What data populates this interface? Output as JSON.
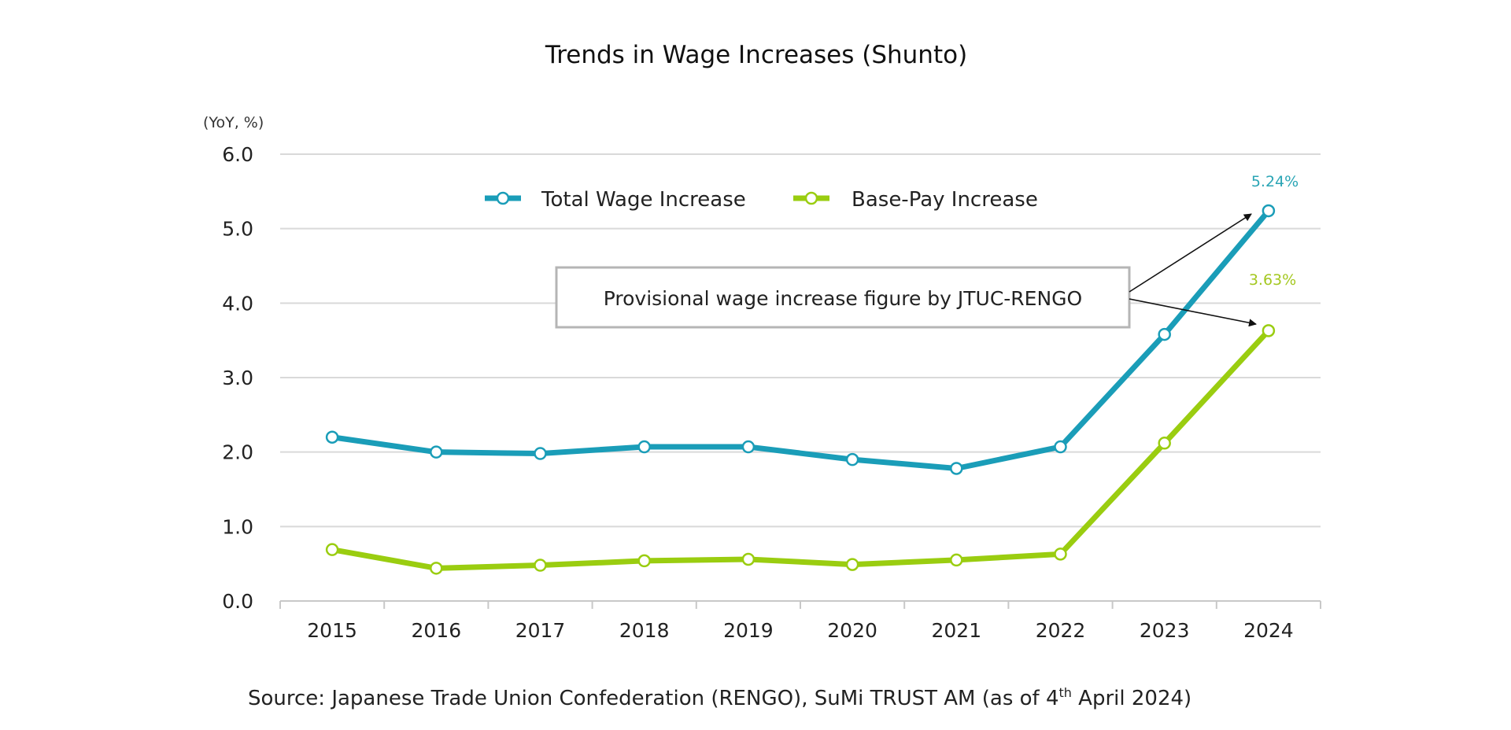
{
  "chart_data": {
    "type": "line",
    "title": "Trends in Wage Increases (Shunto)",
    "ylabel": "(YoY, %)",
    "xlabel": "",
    "categories": [
      "2015",
      "2016",
      "2017",
      "2018",
      "2019",
      "2020",
      "2021",
      "2022",
      "2023",
      "2024"
    ],
    "ylim": [
      0,
      6
    ],
    "yticks": [
      "0.0",
      "1.0",
      "2.0",
      "3.0",
      "4.0",
      "5.0",
      "6.0"
    ],
    "grid": true,
    "legend_position": "top-center",
    "series": [
      {
        "name": "Total Wage Increase",
        "color": "#1a9db8",
        "values": [
          2.2,
          2.0,
          1.98,
          2.07,
          2.07,
          1.9,
          1.78,
          2.07,
          3.58,
          5.24
        ],
        "end_label": "5.24%"
      },
      {
        "name": "Base-Pay Increase",
        "color": "#9acd10",
        "values": [
          0.69,
          0.44,
          0.48,
          0.54,
          0.56,
          0.49,
          0.55,
          0.63,
          2.12,
          3.63
        ],
        "end_label": "3.63%"
      }
    ],
    "annotation": "Provisional wage increase figure by JTUC-RENGO",
    "source": "Source: Japanese Trade Union Confederation (RENGO), SuMi TRUST AM (as of 4",
    "source_sup": "th",
    "source_tail": " April 2024)"
  }
}
